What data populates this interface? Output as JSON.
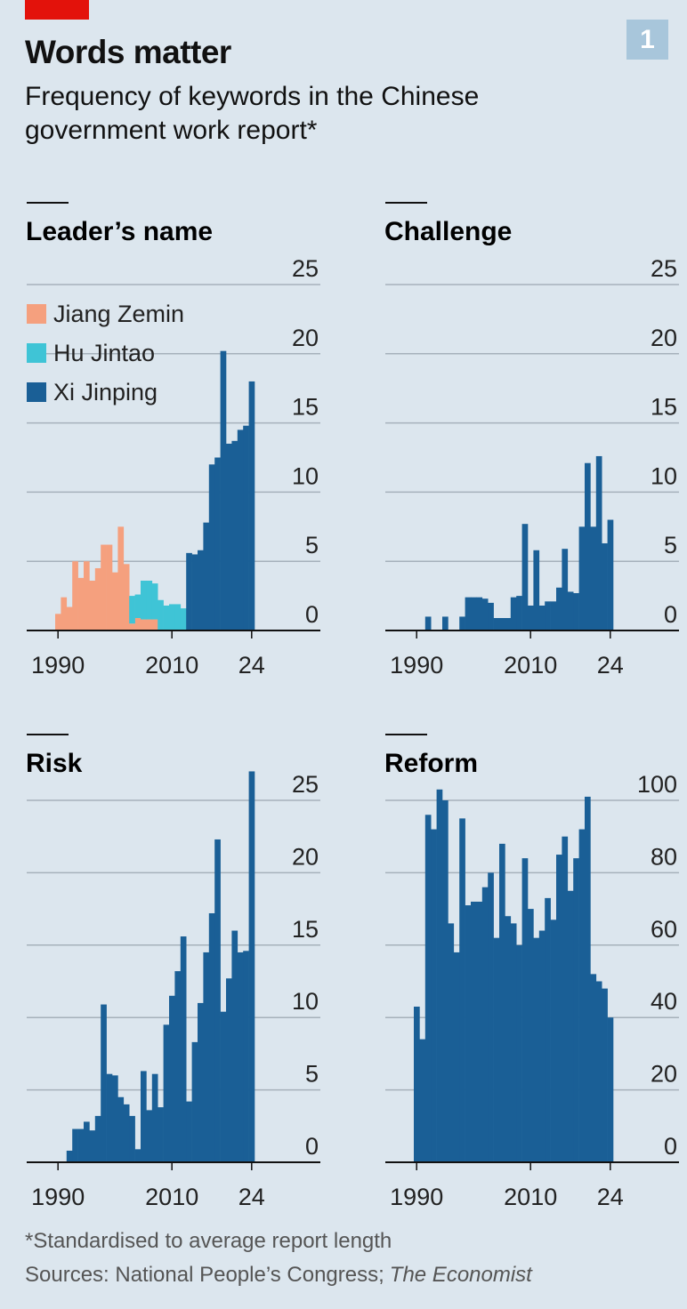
{
  "header": {
    "title": "Words matter",
    "subtitle": "Frequency of keywords in the Chinese government work report*",
    "badge": "1"
  },
  "footer": {
    "note": "*Standardised to average report length",
    "source": "Sources: National People’s Congress;",
    "source_italic": "The Economist"
  },
  "chart_data": [
    {
      "type": "bar",
      "title": "Leader’s name",
      "stacked": true,
      "legend": "top-left",
      "grid": true,
      "x": [
        1990,
        1991,
        1992,
        1993,
        1994,
        1995,
        1996,
        1997,
        1998,
        1999,
        2000,
        2001,
        2002,
        2003,
        2004,
        2005,
        2006,
        2007,
        2008,
        2009,
        2010,
        2011,
        2012,
        2013,
        2014,
        2015,
        2016,
        2017,
        2018,
        2019,
        2020,
        2021,
        2022,
        2023,
        2024
      ],
      "xticks": [
        1990,
        2010,
        {
          "value": 2024,
          "label": "24"
        }
      ],
      "ylim": [
        0,
        25
      ],
      "yticks": [
        0,
        5,
        10,
        15,
        20,
        25
      ],
      "series": [
        {
          "name": "Jiang Zemin",
          "color": "#f5a07e",
          "values": [
            1.2,
            2.4,
            1.7,
            5,
            3.8,
            5,
            3.6,
            4.5,
            6.2,
            6.2,
            4.2,
            7.5,
            4.8,
            0.5,
            0.9,
            0.8,
            0.8,
            0.8,
            null,
            null,
            null,
            null,
            null,
            null,
            null,
            null,
            null,
            null,
            null,
            null,
            null,
            null,
            null,
            null,
            null
          ]
        },
        {
          "name": "Hu Jintao",
          "color": "#3fc4d6",
          "values": [
            null,
            null,
            null,
            null,
            null,
            null,
            null,
            null,
            null,
            null,
            null,
            null,
            null,
            2.0,
            1.7,
            2.8,
            2.8,
            2.6,
            2.2,
            1.8,
            1.9,
            1.9,
            1.6,
            null,
            null,
            null,
            null,
            null,
            null,
            null,
            null,
            null,
            null,
            null,
            null
          ]
        },
        {
          "name": "Xi Jinping",
          "color": "#1a5f96",
          "values": [
            null,
            null,
            null,
            null,
            null,
            null,
            null,
            null,
            null,
            null,
            null,
            null,
            null,
            null,
            null,
            null,
            null,
            null,
            null,
            null,
            null,
            null,
            null,
            5.6,
            5.5,
            5.8,
            7.8,
            12,
            12.5,
            20.2,
            13.5,
            13.7,
            14.5,
            14.8,
            18
          ]
        }
      ]
    },
    {
      "type": "bar",
      "title": "Challenge",
      "grid": true,
      "color": "#1a5f96",
      "x": [
        1990,
        1991,
        1992,
        1993,
        1994,
        1995,
        1996,
        1997,
        1998,
        1999,
        2000,
        2001,
        2002,
        2003,
        2004,
        2005,
        2006,
        2007,
        2008,
        2009,
        2010,
        2011,
        2012,
        2013,
        2014,
        2015,
        2016,
        2017,
        2018,
        2019,
        2020,
        2021,
        2022,
        2023,
        2024
      ],
      "xticks": [
        1990,
        2010,
        {
          "value": 2024,
          "label": "24"
        }
      ],
      "ylim": [
        0,
        25
      ],
      "yticks": [
        0,
        5,
        10,
        15,
        20,
        25
      ],
      "values": [
        0,
        0,
        1,
        0,
        0,
        1,
        0,
        0,
        1,
        2.4,
        2.4,
        2.4,
        2.3,
        2.0,
        0.9,
        0.9,
        0.9,
        2.4,
        2.5,
        7.7,
        1.8,
        5.8,
        1.8,
        2.1,
        2.1,
        3.1,
        5.9,
        2.8,
        2.7,
        7.5,
        12.1,
        7.5,
        12.6,
        6.3,
        8.0
      ]
    },
    {
      "type": "bar",
      "title": "Risk",
      "grid": true,
      "color": "#1a5f96",
      "x": [
        1990,
        1991,
        1992,
        1993,
        1994,
        1995,
        1996,
        1997,
        1998,
        1999,
        2000,
        2001,
        2002,
        2003,
        2004,
        2005,
        2006,
        2007,
        2008,
        2009,
        2010,
        2011,
        2012,
        2013,
        2014,
        2015,
        2016,
        2017,
        2018,
        2019,
        2020,
        2021,
        2022,
        2023,
        2024
      ],
      "xticks": [
        1990,
        2010,
        {
          "value": 2024,
          "label": "24"
        }
      ],
      "ylim": [
        0,
        25
      ],
      "yticks": [
        0,
        5,
        10,
        15,
        20,
        25
      ],
      "values": [
        0,
        0,
        0.8,
        2.3,
        2.3,
        2.8,
        2.2,
        3.2,
        10.9,
        6.1,
        6.0,
        4.5,
        4.0,
        3.2,
        0.9,
        6.3,
        3.6,
        6.1,
        3.8,
        9.5,
        11.5,
        13.2,
        15.6,
        4.2,
        8.3,
        11.0,
        14.5,
        17.2,
        22.3,
        10.4,
        12.7,
        16.0,
        14.5,
        14.6,
        27
      ]
    },
    {
      "type": "bar",
      "title": "Reform",
      "grid": true,
      "color": "#1a5f96",
      "x": [
        1990,
        1991,
        1992,
        1993,
        1994,
        1995,
        1996,
        1997,
        1998,
        1999,
        2000,
        2001,
        2002,
        2003,
        2004,
        2005,
        2006,
        2007,
        2008,
        2009,
        2010,
        2011,
        2012,
        2013,
        2014,
        2015,
        2016,
        2017,
        2018,
        2019,
        2020,
        2021,
        2022,
        2023,
        2024
      ],
      "xticks": [
        1990,
        2010,
        {
          "value": 2024,
          "label": "24"
        }
      ],
      "ylim": [
        0,
        100
      ],
      "yticks": [
        0,
        20,
        40,
        60,
        80,
        100
      ],
      "values": [
        43,
        34,
        96,
        92,
        103,
        100,
        66,
        58,
        95,
        71,
        72,
        72,
        76,
        80,
        62,
        88,
        68,
        66,
        60,
        84,
        70,
        62,
        64,
        73,
        67,
        85,
        90,
        75,
        84,
        92,
        101,
        52,
        50,
        48,
        40
      ]
    }
  ]
}
